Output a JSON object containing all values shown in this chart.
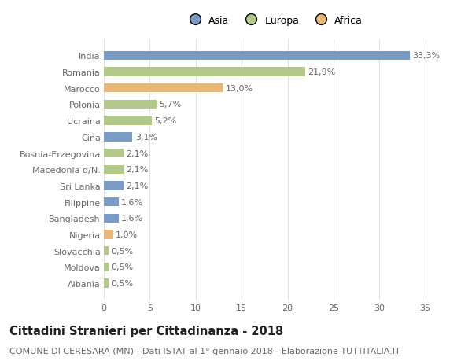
{
  "categories": [
    "India",
    "Romania",
    "Marocco",
    "Polonia",
    "Ucraina",
    "Cina",
    "Bosnia-Erzegovina",
    "Macedonia d/N.",
    "Sri Lanka",
    "Filippine",
    "Bangladesh",
    "Nigeria",
    "Slovacchia",
    "Moldova",
    "Albania"
  ],
  "values": [
    33.3,
    21.9,
    13.0,
    5.7,
    5.2,
    3.1,
    2.1,
    2.1,
    2.1,
    1.6,
    1.6,
    1.0,
    0.5,
    0.5,
    0.5
  ],
  "labels": [
    "33,3%",
    "21,9%",
    "13,0%",
    "5,7%",
    "5,2%",
    "3,1%",
    "2,1%",
    "2,1%",
    "2,1%",
    "1,6%",
    "1,6%",
    "1,0%",
    "0,5%",
    "0,5%",
    "0,5%"
  ],
  "colors": [
    "#7a9cc4",
    "#b3c98a",
    "#e8b87a",
    "#b3c98a",
    "#b3c98a",
    "#7a9cc4",
    "#b3c98a",
    "#b3c98a",
    "#7a9cc4",
    "#7a9cc4",
    "#7a9cc4",
    "#e8b87a",
    "#b3c98a",
    "#b3c98a",
    "#b3c98a"
  ],
  "legend_labels": [
    "Asia",
    "Europa",
    "Africa"
  ],
  "legend_colors": [
    "#7a9cc4",
    "#b3c98a",
    "#e8b87a"
  ],
  "title": "Cittadini Stranieri per Cittadinanza - 2018",
  "subtitle": "COMUNE DI CERESARA (MN) - Dati ISTAT al 1° gennaio 2018 - Elaborazione TUTTITALIA.IT",
  "xlim": [
    0,
    37
  ],
  "xticks": [
    0,
    5,
    10,
    15,
    20,
    25,
    30,
    35
  ],
  "background_color": "#ffffff",
  "grid_color": "#e0e0e0",
  "bar_height": 0.55,
  "label_fontsize": 8,
  "tick_fontsize": 8,
  "title_fontsize": 10.5,
  "subtitle_fontsize": 8
}
